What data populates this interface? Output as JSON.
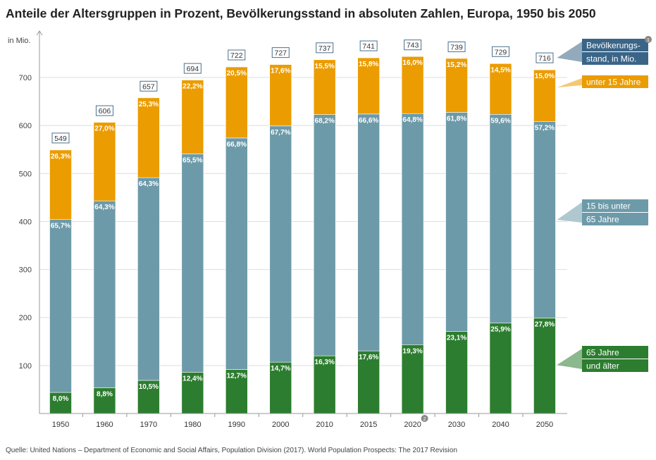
{
  "chart_data": {
    "type": "bar",
    "stacked": true,
    "title": "Anteile der Altersgruppen in Prozent, Bevölkerungsstand in absoluten Zahlen, Europa, 1950 bis 2050",
    "ylabel": "in Mio.",
    "ylim": [
      0,
      750
    ],
    "yticks": [
      100,
      200,
      300,
      400,
      500,
      600,
      700
    ],
    "grid": true,
    "legend_position": "right",
    "categories": [
      "1950",
      "1960",
      "1970",
      "1980",
      "1990",
      "2000",
      "2010",
      "2015",
      "2020",
      "2030",
      "2040",
      "2050"
    ],
    "totals": [
      549,
      606,
      657,
      694,
      722,
      727,
      737,
      741,
      743,
      739,
      729,
      716
    ],
    "totals_legend": "Bevölkerungs-stand, in Mio.",
    "series": [
      {
        "name": "65 Jahre und älter",
        "legend_lines": [
          "65 Jahre",
          "und älter"
        ],
        "color": "#2c7d2f",
        "values": [
          "8,0%",
          "8,8%",
          "10,5%",
          "12,4%",
          "12,7%",
          "14,7%",
          "16,3%",
          "17,6%",
          "19,3%",
          "23,1%",
          "25,9%",
          "27,8%"
        ]
      },
      {
        "name": "15 bis unter 65 Jahre",
        "legend_lines": [
          "15 bis unter",
          "65 Jahre"
        ],
        "color": "#6d9aa9",
        "values": [
          "65,7%",
          "64,3%",
          "64,3%",
          "65,5%",
          "66,8%",
          "67,7%",
          "68,2%",
          "66,6%",
          "64,8%",
          "61,8%",
          "59,6%",
          "57,2%"
        ]
      },
      {
        "name": "unter 15 Jahre",
        "legend_lines": [
          "unter 15 Jahre"
        ],
        "color": "#eb9c00",
        "values": [
          "26,3%",
          "27,0%",
          "25,3%",
          "22,2%",
          "20,5%",
          "17,6%",
          "15,5%",
          "15,8%",
          "16,0%",
          "15,2%",
          "14,5%",
          "15,0%"
        ]
      }
    ],
    "totals_color": "#3a6587",
    "footnotes": {
      "legend_totals": "1",
      "category_2020": "2"
    }
  },
  "source": "Quelle: United Nations – Department of Economic and Social Affairs, Population Division (2017). World Population Prospects: The 2017 Revision"
}
